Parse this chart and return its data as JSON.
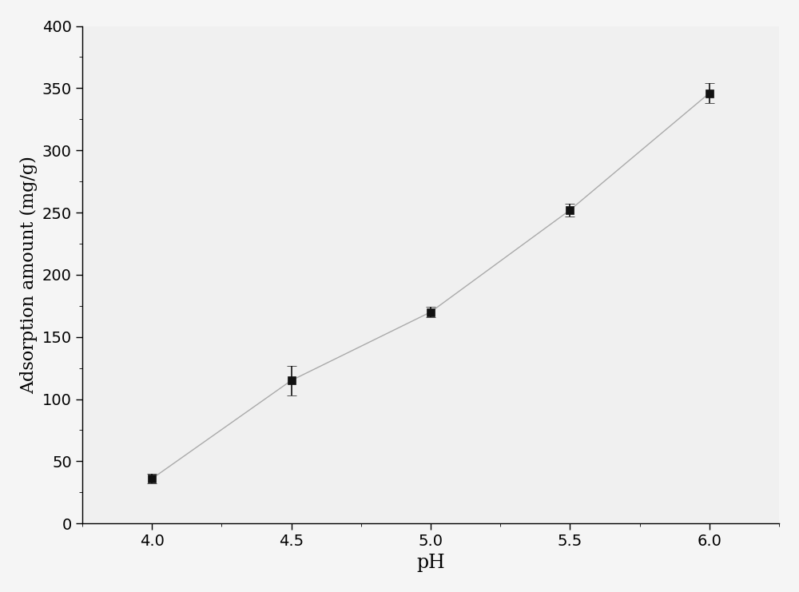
{
  "x": [
    4.0,
    4.5,
    5.0,
    5.5,
    6.0
  ],
  "y": [
    36,
    115,
    170,
    252,
    346
  ],
  "yerr": [
    4,
    12,
    4,
    5,
    8
  ],
  "xlabel": "pH",
  "ylabel": "Adsorption amount (mg/g)",
  "xlim": [
    3.75,
    6.25
  ],
  "ylim": [
    0,
    400
  ],
  "xticks": [
    4.0,
    4.5,
    5.0,
    5.5,
    6.0
  ],
  "yticks": [
    0,
    50,
    100,
    150,
    200,
    250,
    300,
    350,
    400
  ],
  "line_color": "#aaaaaa",
  "marker_color": "#111111",
  "marker_size": 7,
  "line_width": 1.0,
  "background_color": "#f5f5f5",
  "plot_bg_color": "#f0f0f0",
  "xlabel_fontsize": 17,
  "ylabel_fontsize": 16,
  "tick_fontsize": 14
}
